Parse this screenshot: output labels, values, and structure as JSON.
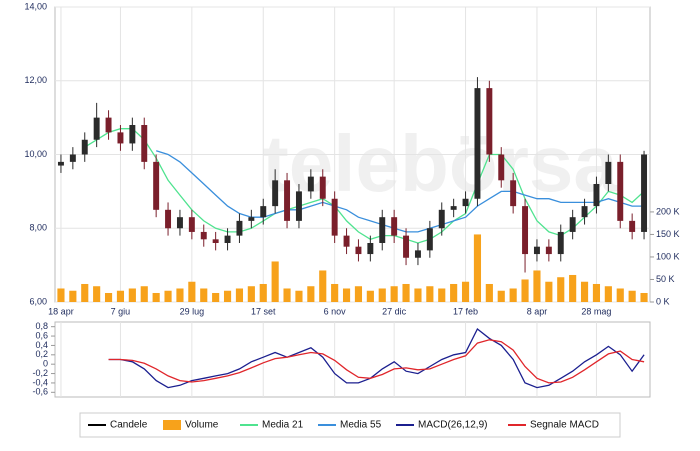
{
  "chart_data": [
    {
      "type": "candlestick",
      "categories": [
        "18 apr",
        null,
        null,
        null,
        null,
        "7 giu",
        null,
        null,
        null,
        null,
        null,
        "29 lug",
        null,
        null,
        null,
        null,
        null,
        "17 set",
        null,
        null,
        null,
        null,
        null,
        "6 nov",
        null,
        null,
        null,
        null,
        "27 dic",
        null,
        null,
        null,
        null,
        null,
        "17 feb",
        null,
        null,
        null,
        null,
        null,
        "8 apr",
        null,
        null,
        null,
        null,
        "28 mag",
        null,
        null,
        null,
        null
      ],
      "candles": {
        "name": "Candele",
        "color": "#000000",
        "up_color": "#2b2b2b",
        "down_color": "#7a1f2b",
        "open": [
          9.7,
          9.8,
          10.0,
          10.4,
          11.0,
          10.6,
          10.3,
          10.8,
          9.8,
          8.5,
          8.0,
          8.3,
          7.9,
          7.7,
          7.6,
          7.8,
          8.2,
          8.3,
          8.6,
          9.3,
          8.2,
          9.0,
          9.4,
          8.8,
          7.8,
          7.5,
          7.3,
          7.6,
          8.3,
          7.8,
          7.2,
          7.4,
          8.0,
          8.5,
          8.6,
          8.8,
          11.8,
          10.0,
          9.3,
          8.6,
          7.3,
          7.5,
          7.3,
          7.9,
          8.3,
          8.6,
          9.2,
          9.8,
          8.2,
          7.9
        ],
        "high": [
          10.0,
          10.2,
          10.6,
          11.4,
          11.2,
          10.8,
          11.0,
          11.0,
          10.0,
          8.7,
          8.5,
          8.5,
          8.1,
          7.9,
          8.0,
          8.4,
          8.5,
          8.8,
          9.6,
          9.5,
          9.2,
          9.6,
          9.6,
          9.0,
          8.0,
          7.7,
          7.8,
          8.5,
          8.5,
          8.0,
          7.6,
          8.2,
          8.7,
          8.8,
          9.0,
          12.1,
          12.0,
          10.2,
          9.5,
          8.8,
          7.7,
          7.7,
          8.1,
          8.5,
          8.8,
          9.4,
          10.0,
          10.0,
          8.4,
          10.1
        ],
        "low": [
          9.5,
          9.6,
          9.8,
          10.2,
          10.4,
          10.1,
          10.1,
          9.6,
          8.3,
          7.8,
          7.8,
          7.7,
          7.5,
          7.4,
          7.4,
          7.6,
          8.0,
          8.1,
          8.4,
          8.0,
          8.0,
          8.8,
          8.6,
          7.6,
          7.3,
          7.1,
          7.1,
          7.4,
          7.6,
          7.0,
          7.0,
          7.2,
          7.8,
          8.3,
          8.4,
          8.6,
          9.8,
          9.1,
          8.4,
          6.8,
          7.1,
          7.1,
          7.1,
          7.7,
          8.1,
          8.4,
          9.0,
          8.0,
          7.7,
          7.7
        ],
        "close": [
          9.8,
          10.0,
          10.4,
          11.0,
          10.6,
          10.3,
          10.8,
          9.8,
          8.5,
          8.0,
          8.3,
          7.9,
          7.7,
          7.6,
          7.8,
          8.2,
          8.3,
          8.6,
          9.3,
          8.2,
          9.0,
          9.4,
          8.8,
          7.8,
          7.5,
          7.3,
          7.6,
          8.3,
          7.8,
          7.2,
          7.4,
          8.0,
          8.5,
          8.6,
          8.8,
          11.8,
          10.0,
          9.3,
          8.6,
          7.3,
          7.5,
          7.3,
          7.9,
          8.3,
          8.6,
          9.2,
          9.8,
          8.2,
          7.9,
          10.0
        ]
      },
      "series": [
        {
          "name": "Volume",
          "color": "#f7a21b",
          "kind": "bar",
          "axis": "y2",
          "values": [
            30,
            25,
            40,
            35,
            20,
            25,
            30,
            35,
            20,
            25,
            30,
            45,
            30,
            20,
            25,
            30,
            35,
            40,
            90,
            30,
            25,
            35,
            70,
            40,
            30,
            35,
            25,
            30,
            35,
            40,
            30,
            35,
            30,
            40,
            45,
            150,
            40,
            25,
            30,
            50,
            70,
            45,
            55,
            60,
            45,
            40,
            35,
            30,
            25,
            20
          ]
        },
        {
          "name": "Media 21",
          "color": "#4fe38f",
          "kind": "line",
          "values": [
            null,
            null,
            10.2,
            10.4,
            10.6,
            10.7,
            10.7,
            10.4,
            9.9,
            9.3,
            8.9,
            8.5,
            8.2,
            8.0,
            7.9,
            7.9,
            8.0,
            8.2,
            8.4,
            8.5,
            8.6,
            8.7,
            8.8,
            8.6,
            8.2,
            7.9,
            7.7,
            7.8,
            7.8,
            7.7,
            7.6,
            7.7,
            7.9,
            8.2,
            8.4,
            9.2,
            10.0,
            10.0,
            9.6,
            8.8,
            8.2,
            7.9,
            7.8,
            8.0,
            8.3,
            8.6,
            9.0,
            8.9,
            8.7,
            9.0
          ]
        },
        {
          "name": "Media 55",
          "color": "#3a8fdc",
          "kind": "line",
          "values": [
            null,
            null,
            null,
            null,
            null,
            null,
            null,
            null,
            10.1,
            10.0,
            9.8,
            9.5,
            9.2,
            8.9,
            8.6,
            8.4,
            8.3,
            8.3,
            8.4,
            8.5,
            8.5,
            8.6,
            8.7,
            8.6,
            8.5,
            8.3,
            8.2,
            8.1,
            8.0,
            7.9,
            7.9,
            8.0,
            8.1,
            8.2,
            8.3,
            8.6,
            8.8,
            9.0,
            9.0,
            8.9,
            8.8,
            8.8,
            8.7,
            8.7,
            8.7,
            8.7,
            8.8,
            8.7,
            8.6,
            8.6
          ]
        }
      ],
      "ylim": [
        6,
        14
      ],
      "yticks": [
        {
          "value": 6,
          "label": "6,00"
        },
        {
          "value": 8,
          "label": "8,00"
        },
        {
          "value": 10,
          "label": "10,00"
        },
        {
          "value": 12,
          "label": "12,00"
        },
        {
          "value": 14,
          "label": "14,00"
        }
      ],
      "y2lim": [
        0,
        655
      ],
      "y2ticks": [
        {
          "value": 0,
          "label": "0 K"
        },
        {
          "value": 50,
          "label": "50 K"
        },
        {
          "value": 100,
          "label": "100 K"
        },
        {
          "value": 150,
          "label": "150 K"
        },
        {
          "value": 200,
          "label": "200 K"
        }
      ],
      "grid": true
    },
    {
      "type": "line",
      "series": [
        {
          "name": "MACD(26,12,9)",
          "color": "#1b1f8f",
          "values": [
            null,
            null,
            null,
            null,
            0.1,
            0.1,
            0.05,
            -0.1,
            -0.35,
            -0.5,
            -0.45,
            -0.35,
            -0.3,
            -0.25,
            -0.2,
            -0.1,
            0.05,
            0.15,
            0.25,
            0.15,
            0.25,
            0.35,
            0.15,
            -0.2,
            -0.4,
            -0.4,
            -0.3,
            -0.1,
            0.05,
            -0.15,
            -0.2,
            -0.05,
            0.1,
            0.2,
            0.25,
            0.75,
            0.55,
            0.4,
            0.1,
            -0.4,
            -0.5,
            -0.45,
            -0.3,
            -0.15,
            0.05,
            0.2,
            0.38,
            0.2,
            -0.15,
            0.2
          ]
        },
        {
          "name": "Segnale MACD",
          "color": "#e0262b",
          "values": [
            null,
            null,
            null,
            null,
            0.1,
            0.1,
            0.08,
            0.02,
            -0.1,
            -0.25,
            -0.35,
            -0.38,
            -0.35,
            -0.3,
            -0.25,
            -0.18,
            -0.08,
            0.03,
            0.12,
            0.15,
            0.2,
            0.25,
            0.22,
            0.08,
            -0.12,
            -0.28,
            -0.3,
            -0.22,
            -0.1,
            -0.08,
            -0.12,
            -0.1,
            0.0,
            0.1,
            0.18,
            0.45,
            0.52,
            0.48,
            0.3,
            -0.05,
            -0.3,
            -0.4,
            -0.38,
            -0.28,
            -0.12,
            0.05,
            0.22,
            0.28,
            0.1,
            0.05
          ]
        }
      ],
      "ylim": [
        -0.7,
        0.9
      ],
      "yticks": [
        {
          "value": -0.6,
          "label": "-0,6"
        },
        {
          "value": -0.4,
          "label": "-0,4"
        },
        {
          "value": -0.2,
          "label": "-0,2"
        },
        0,
        {
          "value": 0.2,
          "label": "0,2"
        },
        {
          "value": 0.4,
          "label": "0,4"
        },
        {
          "value": 0.6,
          "label": "0,6"
        },
        {
          "value": 0.8,
          "label": "0,8"
        }
      ],
      "grid": true
    }
  ]
}
